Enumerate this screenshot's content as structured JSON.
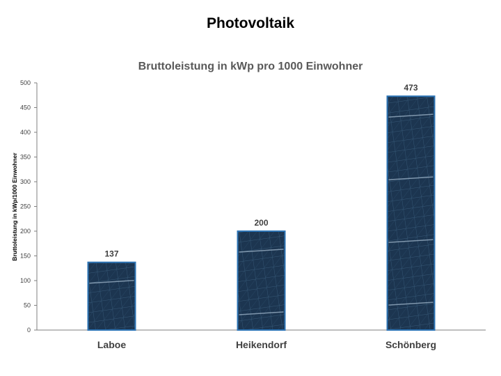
{
  "page_title": "Photovoltaik",
  "chart_data": {
    "type": "bar",
    "title": "Bruttoleistung in kWp pro 1000 Einwohner",
    "xlabel": "",
    "ylabel": "Bruttoleistung in kWp/1000 Einwohner",
    "categories": [
      "Laboe",
      "Heikendorf",
      "Schönberg"
    ],
    "values": [
      137,
      200,
      473
    ],
    "ylim": [
      0,
      500
    ],
    "yticks": [
      0,
      50,
      100,
      150,
      200,
      250,
      300,
      350,
      400,
      450,
      500
    ],
    "grid": false,
    "legend": "none",
    "data_labels": true
  },
  "colors": {
    "bar_fill": "#1e3a55",
    "bar_border": "#2e75b6",
    "axis": "#7f7f7f"
  }
}
